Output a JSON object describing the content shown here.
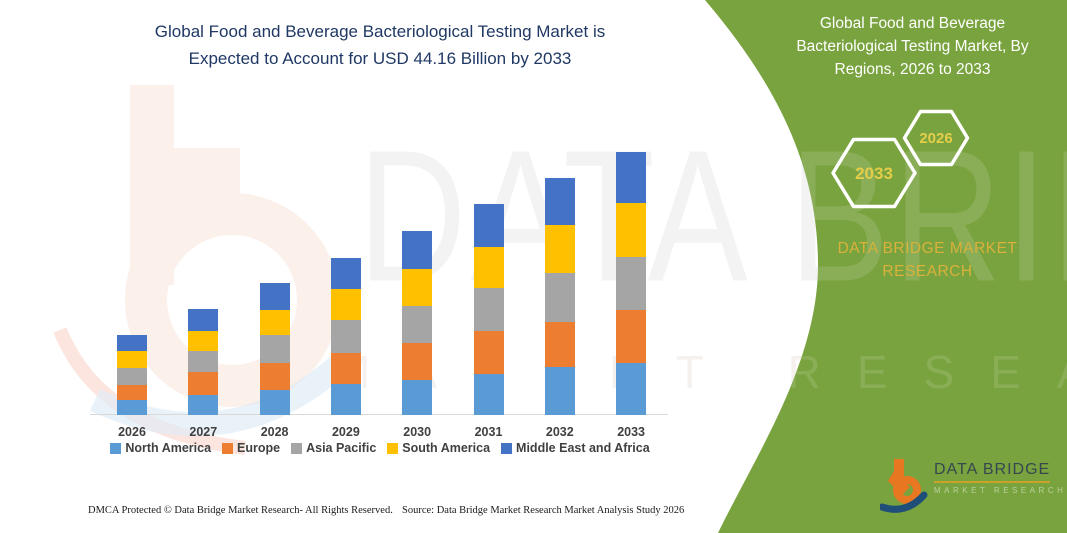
{
  "header": {
    "title_lines": [
      "Global Food and Beverage Bacteriological Testing Market is",
      "Expected to Account for USD 44.16 Billion by 2033"
    ],
    "title_color": "#1F3864"
  },
  "chart_data": {
    "type": "bar",
    "stacked": true,
    "title": "Global Food and Beverage Bacteriological Testing Market is Expected to Account for USD 44.16 Billion by 2033",
    "unit": "USD Billion",
    "values_note": "segment values estimated from bar heights; 2033 total stated as 44.16",
    "categories": [
      "2026",
      "2027",
      "2028",
      "2029",
      "2030",
      "2031",
      "2032",
      "2033"
    ],
    "series": [
      {
        "name": "North America",
        "color": "#5B9BD5",
        "values": [
          2.5,
          3.4,
          4.2,
          5.3,
          5.9,
          6.9,
          8.0,
          8.7
        ]
      },
      {
        "name": "Europe",
        "color": "#ED7D31",
        "values": [
          2.6,
          3.9,
          4.6,
          5.1,
          6.2,
          7.3,
          7.7,
          8.9
        ]
      },
      {
        "name": "Asia Pacific",
        "color": "#A5A5A5",
        "values": [
          2.8,
          3.4,
          4.6,
          5.6,
          6.3,
          7.1,
          8.2,
          9.0
        ]
      },
      {
        "name": "South America",
        "color": "#FFC000",
        "values": [
          2.8,
          3.5,
          4.2,
          5.2,
          6.2,
          6.9,
          8.1,
          9.0
        ]
      },
      {
        "name": "Middle East and Africa",
        "color": "#4472C4",
        "values": [
          2.7,
          3.6,
          4.5,
          5.3,
          6.3,
          7.3,
          7.9,
          8.56
        ]
      }
    ],
    "yearly_totals_estimated": [
      13.4,
      17.8,
      22.1,
      26.5,
      30.9,
      35.5,
      39.9,
      44.16
    ],
    "xlabel": "",
    "ylabel": "",
    "y_axis_visible": false,
    "grid": false,
    "legend_position": "bottom"
  },
  "side_panel": {
    "background_color": "#79A33F",
    "title_lines": [
      "Global Food and Beverage",
      "Bacteriological Testing Market, By",
      "Regions, 2026 to 2033"
    ],
    "badges": [
      {
        "year": "2033"
      },
      {
        "year": "2026"
      }
    ],
    "brand_lines": [
      "DATA BRIDGE MARKET",
      "RESEARCH"
    ],
    "brand_color": "#D9B13B"
  },
  "watermark": {
    "primary": "DATA BRIDGE",
    "secondary": "MARKET RESEARCH"
  },
  "logo": {
    "name": "DATA BRIDGE",
    "subtitle": "MARKET RESEARCH"
  },
  "footer": {
    "dmca": "DMCA Protected © Data Bridge Market Research-  All Rights Reserved.",
    "source": "Source: Data Bridge Market Research  Market Analysis Study 2026"
  }
}
